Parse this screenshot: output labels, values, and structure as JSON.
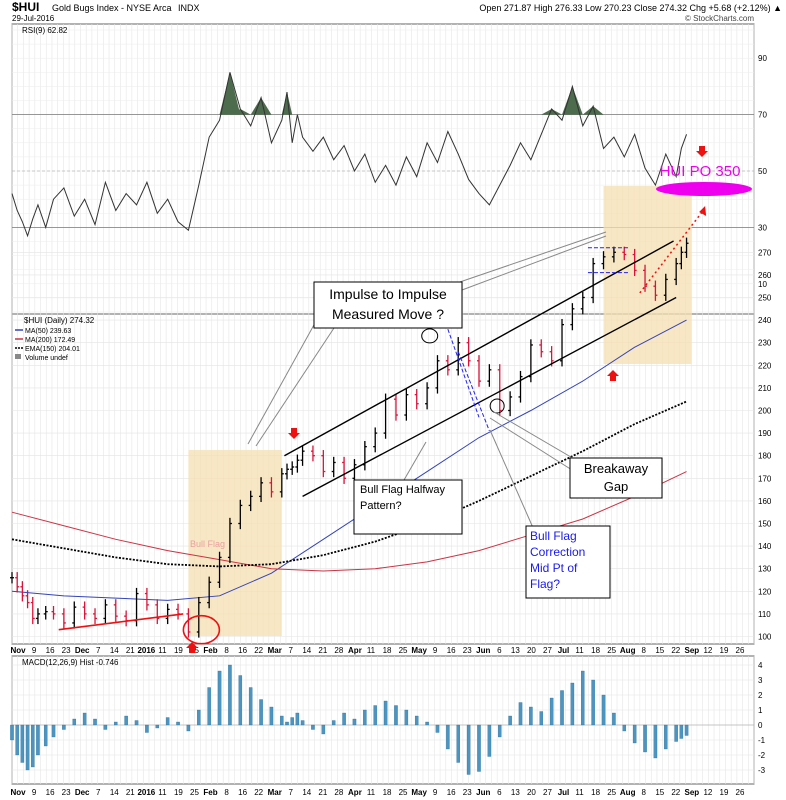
{
  "header": {
    "symbol": "$HUI",
    "name": "Gold Bugs Index - NYSE Arca",
    "exchange": "INDX",
    "date": "29-Jul-2016",
    "ohlc": "Open 271.87   High 276.33   Low 270.23   Close 274.32   Chg +5.68 (+2.12%) ▲",
    "copyright": "© StockCharts.com"
  },
  "chart_data": [
    {
      "type": "line",
      "panel": "rsi",
      "legend": "RSI(9) 62.82",
      "ylim": [
        0,
        100
      ],
      "y_ticks": [
        10,
        30,
        50,
        70,
        90
      ],
      "levels": [
        30,
        70
      ],
      "x": [
        0,
        2,
        4,
        6,
        8,
        10,
        13,
        16,
        20,
        24,
        28,
        32,
        36,
        40,
        44,
        48,
        52,
        56,
        60,
        64,
        68,
        72,
        76,
        80,
        84,
        88,
        92,
        96,
        100,
        104,
        106,
        108,
        110,
        112,
        116,
        120,
        124,
        128,
        132,
        136,
        140,
        144,
        148,
        152,
        156,
        160,
        164,
        168,
        172,
        176,
        180,
        184,
        188,
        192,
        196,
        200,
        204,
        208,
        212,
        216,
        220,
        224,
        228,
        232,
        236,
        240,
        244,
        248,
        252,
        256,
        258,
        260
      ],
      "values": [
        42,
        36,
        32,
        27,
        33,
        38,
        30,
        40,
        44,
        34,
        40,
        31,
        46,
        36,
        42,
        38,
        46,
        35,
        40,
        32,
        29,
        45,
        62,
        68,
        85,
        72,
        66,
        76,
        60,
        68,
        78,
        60,
        70,
        62,
        57,
        62,
        54,
        59,
        50,
        56,
        46,
        52,
        45,
        55,
        48,
        60,
        53,
        64,
        56,
        47,
        42,
        38,
        45,
        52,
        60,
        54,
        63,
        72,
        68,
        80,
        66,
        73,
        58,
        62,
        55,
        63,
        51,
        45,
        56,
        48,
        58,
        63
      ]
    },
    {
      "type": "ohlc",
      "panel": "price",
      "title": "$HUI (Daily) 274.32",
      "ylim": [
        95,
        280
      ],
      "y_ticks": [
        100,
        110,
        120,
        130,
        140,
        150,
        160,
        170,
        180,
        190,
        200,
        210,
        220,
        230,
        240,
        250,
        260,
        270
      ],
      "x_tick_labels": [
        "Nov",
        "9",
        "16",
        "23",
        "Dec",
        "7",
        "14",
        "21",
        "2016",
        "11",
        "19",
        "25",
        "Feb",
        "8",
        "16",
        "22",
        "Mar",
        "7",
        "14",
        "21",
        "28",
        "Apr",
        "11",
        "18",
        "25",
        "May",
        "9",
        "16",
        "23",
        "Jun",
        "6",
        "13",
        "20",
        "27",
        "Jul",
        "11",
        "18",
        "25",
        "Aug",
        "8",
        "15",
        "22",
        "Sep",
        "12",
        "19",
        "26"
      ],
      "x": [
        0,
        2,
        4,
        6,
        8,
        10,
        13,
        16,
        20,
        24,
        28,
        32,
        36,
        40,
        44,
        48,
        52,
        56,
        60,
        64,
        68,
        72,
        76,
        80,
        84,
        88,
        92,
        96,
        100,
        104,
        106,
        108,
        110,
        112,
        116,
        120,
        124,
        128,
        132,
        136,
        140,
        144,
        148,
        152,
        156,
        160,
        164,
        168,
        172,
        176,
        180,
        184,
        188,
        192,
        196,
        200,
        204,
        208,
        212,
        216,
        220,
        224,
        228,
        232,
        236,
        240,
        244,
        248,
        252,
        256,
        258,
        260
      ],
      "values": [
        126,
        122,
        118,
        115,
        108,
        110,
        111,
        110,
        106,
        113,
        110,
        108,
        114,
        109,
        107,
        119,
        114,
        108,
        112,
        110,
        102,
        115,
        124,
        135,
        150,
        158,
        162,
        168,
        164,
        172,
        174,
        175,
        178,
        182,
        180,
        173,
        177,
        170,
        176,
        184,
        190,
        205,
        198,
        207,
        203,
        210,
        222,
        218,
        230,
        222,
        213,
        218,
        200,
        206,
        215,
        229,
        226,
        222,
        238,
        245,
        250,
        265,
        268,
        270,
        269,
        262,
        255,
        251,
        258,
        265,
        270,
        274
      ],
      "series": [
        {
          "name": "MA(50) 239.63",
          "color": "#3344bb",
          "x": [
            0,
            20,
            40,
            60,
            80,
            100,
            120,
            140,
            160,
            180,
            200,
            220,
            240,
            260
          ],
          "values": [
            120,
            118,
            117,
            116,
            118,
            128,
            143,
            158,
            173,
            188,
            200,
            213,
            228,
            240
          ]
        },
        {
          "name": "MA(200) 172.49",
          "color": "#cc3344",
          "x": [
            0,
            20,
            40,
            60,
            80,
            100,
            120,
            140,
            160,
            180,
            200,
            220,
            240,
            260
          ],
          "values": [
            155,
            149,
            143,
            138,
            134,
            130,
            129,
            130,
            133,
            138,
            145,
            152,
            162,
            173
          ]
        },
        {
          "name": "EMA(150) 204.01",
          "color": "#000000",
          "x": [
            0,
            20,
            40,
            60,
            80,
            100,
            120,
            140,
            160,
            180,
            200,
            220,
            240,
            260
          ],
          "values": [
            143,
            139,
            135,
            132,
            131,
            132,
            136,
            142,
            150,
            160,
            171,
            182,
            194,
            204
          ]
        }
      ],
      "volume_legend": "Volume undef",
      "watermark": "Bull Flag"
    },
    {
      "type": "bar",
      "panel": "macd",
      "legend": "MACD(12,26,9) Hist -0.746",
      "ylim": [
        -3.5,
        4.5
      ],
      "y_ticks": [
        -3,
        -2,
        -1,
        0,
        1,
        2,
        3,
        4
      ],
      "x": [
        0,
        2,
        4,
        6,
        8,
        10,
        13,
        16,
        20,
        24,
        28,
        32,
        36,
        40,
        44,
        48,
        52,
        56,
        60,
        64,
        68,
        72,
        76,
        80,
        84,
        88,
        92,
        96,
        100,
        104,
        106,
        108,
        110,
        112,
        116,
        120,
        124,
        128,
        132,
        136,
        140,
        144,
        148,
        152,
        156,
        160,
        164,
        168,
        172,
        176,
        180,
        184,
        188,
        192,
        196,
        200,
        204,
        208,
        212,
        216,
        220,
        224,
        228,
        232,
        236,
        240,
        244,
        248,
        252,
        256,
        258,
        260
      ],
      "values": [
        -1,
        -2,
        -2.5,
        -3,
        -2.8,
        -2,
        -1.4,
        -0.8,
        -0.3,
        0.4,
        0.8,
        0.4,
        -0.3,
        0.2,
        0.6,
        0.3,
        -0.5,
        -0.2,
        0.5,
        0.2,
        -0.4,
        1,
        2.5,
        3.6,
        4,
        3.3,
        2.5,
        1.7,
        1.2,
        0.6,
        0.2,
        0.5,
        0.8,
        0.3,
        -0.3,
        -0.6,
        0.3,
        0.8,
        0.4,
        1,
        1.3,
        1.6,
        1.3,
        1,
        0.6,
        0.2,
        -0.5,
        -1.6,
        -2.5,
        -3.3,
        -3.1,
        -2.1,
        -0.8,
        0.6,
        1.5,
        1.2,
        0.9,
        1.8,
        2.3,
        2.8,
        3.6,
        3,
        2,
        0.8,
        -0.4,
        -1.2,
        -1.8,
        -2.2,
        -1.6,
        -1.1,
        -0.9,
        -0.7
      ]
    }
  ],
  "annotations": {
    "impulse": "Impulse to Impulse Measured Move ?",
    "bull_flag": "Bull Flag Halfway Pattern?",
    "breakaway": "Breakaway Gap",
    "flag_correction": "Bull Flag Correction Mid Pt of Flag?",
    "po": "HUI PO 350"
  },
  "colors": {
    "up_bar": "#000000",
    "down_bar": "#d8143c",
    "rsi_overbought_fill": "#4d6b4d",
    "highlight_box": "#f5dfb0",
    "po_magenta": "#ee00ee",
    "arrow_red": "#ee1111"
  }
}
